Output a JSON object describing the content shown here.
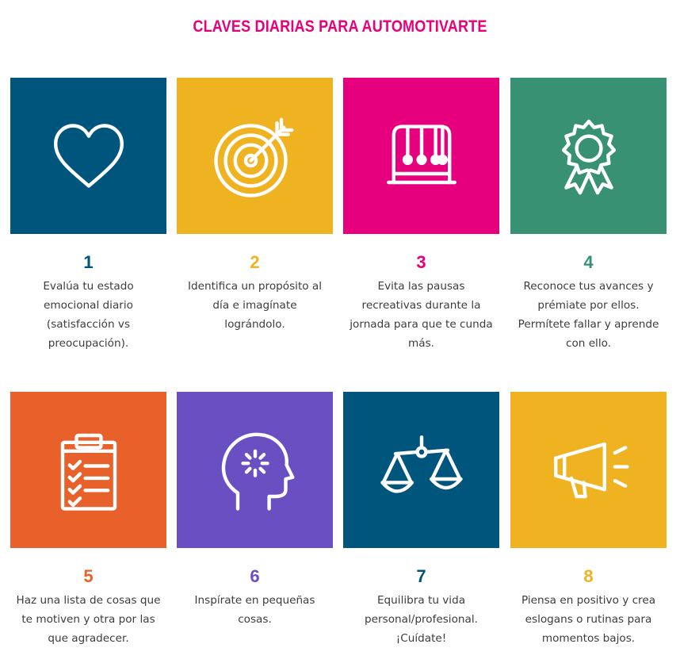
{
  "title": {
    "text": "CLAVES DIARIAS PARA AUTOMOTIVARTE",
    "color": "#e6007e"
  },
  "text_color": "#3c3c3c",
  "cards": [
    {
      "number": "1",
      "color": "#00557c",
      "icon": "heart-icon",
      "text": "Evalúa tu estado\nemocional diario\n(satisfacción vs\npreocupación)."
    },
    {
      "number": "2",
      "color": "#efb321",
      "icon": "target-icon",
      "text": "Identifica un propósito al\ndía e imagínate\nlográndolo."
    },
    {
      "number": "3",
      "color": "#e6007e",
      "icon": "newtons-cradle-icon",
      "text": "Evita las pausas\nrecreativas durante la\njornada para que te cunda\nmás."
    },
    {
      "number": "4",
      "color": "#389172",
      "icon": "award-ribbon-icon",
      "text": "Reconoce tus avances y\nprémiate por ellos.\nPermítete fallar y aprende\ncon ello."
    },
    {
      "number": "5",
      "color": "#e8602a",
      "icon": "checklist-clipboard-icon",
      "text": "Haz una lista de cosas que\nte motiven y otra por las\nque agradecer."
    },
    {
      "number": "6",
      "color": "#6a4fc3",
      "icon": "head-idea-icon",
      "text": "Inspírate en pequeñas\ncosas."
    },
    {
      "number": "7",
      "color": "#00557c",
      "icon": "balance-scale-icon",
      "text": "Equilibra tu vida\npersonal/profesional.\n¡Cuídate!"
    },
    {
      "number": "8",
      "color": "#efb321",
      "icon": "megaphone-icon",
      "text": "Piensa en positivo y crea\neslogans o rutinas para\nmomentos bajos."
    }
  ]
}
